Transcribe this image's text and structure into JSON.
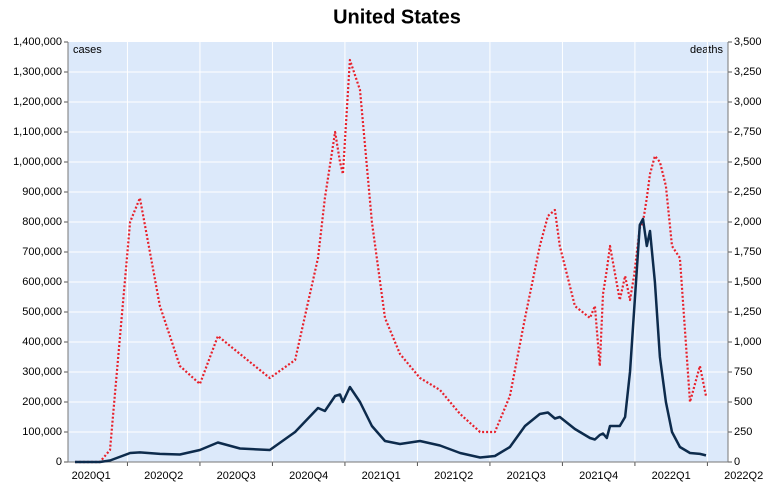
{
  "chart_data": {
    "type": "line",
    "title": "United States",
    "ylabel": "cases",
    "y2label": "deaths",
    "x": [
      2020.069,
      2020.155,
      2020.19,
      2020.259,
      2020.293,
      2020.362,
      2020.431,
      2020.5,
      2020.562,
      2020.638,
      2020.741,
      2020.828,
      2020.907,
      2020.931,
      2020.966,
      2020.983,
      2020.993,
      2021.017,
      2021.052,
      2021.093,
      2021.138,
      2021.19,
      2021.259,
      2021.328,
      2021.397,
      2021.466,
      2021.517,
      2021.569,
      2021.621,
      2021.672,
      2021.7,
      2021.724,
      2021.741,
      2021.793,
      2021.845,
      2021.862,
      2021.879,
      2021.89,
      2021.903,
      2021.914,
      2021.948,
      2021.966,
      2021.983,
      2021.997,
      2022.017,
      2022.028,
      2022.041,
      2022.052,
      2022.069,
      2022.086,
      2022.107,
      2022.128,
      2022.155,
      2022.19,
      2022.224,
      2022.245
    ],
    "series": [
      {
        "name": "cases",
        "color": "#0d2b4c",
        "axis": "y",
        "values": [
          0,
          0,
          5000,
          30000,
          32000,
          27000,
          25000,
          40000,
          65000,
          45000,
          40000,
          100000,
          180000,
          170000,
          220000,
          225000,
          200000,
          250000,
          200000,
          120000,
          70000,
          60000,
          70000,
          55000,
          30000,
          15000,
          20000,
          50000,
          120000,
          160000,
          165000,
          145000,
          150000,
          110000,
          80000,
          75000,
          90000,
          95000,
          80000,
          120000,
          120000,
          150000,
          300000,
          500000,
          790000,
          810000,
          720000,
          770000,
          600000,
          350000,
          200000,
          100000,
          50000,
          30000,
          27000,
          22000
        ]
      },
      {
        "name": "deaths",
        "color": "#e8202a",
        "axis": "y2",
        "values": [
          0,
          0,
          100,
          2000,
          2200,
          1300,
          800,
          650,
          1050,
          900,
          700,
          850,
          1700,
          2200,
          2750,
          2500,
          2400,
          3350,
          3100,
          2000,
          1200,
          900,
          700,
          600,
          400,
          250,
          250,
          550,
          1200,
          1800,
          2050,
          2100,
          1800,
          1300,
          1200,
          1300,
          800,
          1400,
          1600,
          1800,
          1350,
          1550,
          1350,
          1550,
          1950,
          2000,
          2200,
          2400,
          2550,
          2500,
          2300,
          1800,
          1700,
          500,
          800,
          550
        ]
      }
    ],
    "xlim": [
      2020.045,
      2022.321
    ],
    "xticks": [
      {
        "value": 2020,
        "label": "2020Q1"
      },
      {
        "value": 2020.25,
        "label": "2020Q2"
      },
      {
        "value": 2020.5,
        "label": "2020Q3"
      },
      {
        "value": 2020.75,
        "label": "2020Q4"
      },
      {
        "value": 2021,
        "label": "2021Q1"
      },
      {
        "value": 2021.25,
        "label": "2021Q2"
      },
      {
        "value": 2021.5,
        "label": "2021Q3"
      },
      {
        "value": 2021.75,
        "label": "2021Q4"
      },
      {
        "value": 2022,
        "label": "2022Q1"
      },
      {
        "value": 2022.25,
        "label": "2022Q2"
      }
    ],
    "ylim": [
      0,
      1400000
    ],
    "yticks": [
      0,
      {
        "value": 100000,
        "label": "100,000"
      },
      {
        "value": 200000,
        "label": "200,000"
      },
      {
        "value": 300000,
        "label": "300,000"
      },
      {
        "value": 400000,
        "label": "400,000"
      },
      {
        "value": 500000,
        "label": "500,000"
      },
      {
        "value": 600000,
        "label": "600,000"
      },
      {
        "value": 700000,
        "label": "700,000"
      },
      {
        "value": 800000,
        "label": "800,000"
      },
      {
        "value": 900000,
        "label": "900,000"
      },
      {
        "value": 1000000,
        "label": "1,000,000"
      },
      {
        "value": 1100000,
        "label": "1,100,000"
      },
      {
        "value": 1200000,
        "label": "1,200,000"
      },
      {
        "value": 1300000,
        "label": "1,300,000"
      },
      {
        "value": 1400000,
        "label": "1,400,000"
      }
    ],
    "y2lim": [
      0,
      3500
    ],
    "y2ticks": [
      0,
      250,
      500,
      750,
      {
        "value": 1000,
        "label": "1,000"
      },
      {
        "value": 1250,
        "label": "1,250"
      },
      {
        "value": 1500,
        "label": "1,500"
      },
      {
        "value": 1750,
        "label": "1,750"
      },
      {
        "value": 2000,
        "label": "2,000"
      },
      {
        "value": 2250,
        "label": "2,250"
      },
      {
        "value": 2500,
        "label": "2,500"
      },
      {
        "value": 2750,
        "label": "2,750"
      },
      {
        "value": 3000,
        "label": "3,000"
      },
      {
        "value": 3250,
        "label": "3,250"
      },
      {
        "value": 3500,
        "label": "3,500"
      }
    ],
    "grid": true
  }
}
